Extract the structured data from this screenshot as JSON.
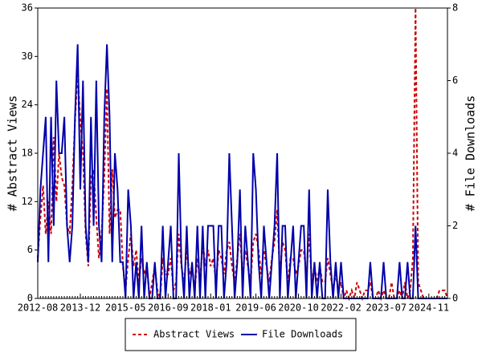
{
  "chart_data": {
    "type": "line",
    "categories": [
      "2012-08",
      null,
      null,
      null,
      null,
      null,
      null,
      null,
      null,
      null,
      null,
      null,
      null,
      null,
      null,
      null,
      "2013-12",
      null,
      null,
      null,
      null,
      null,
      null,
      null,
      null,
      null,
      null,
      null,
      null,
      null,
      null,
      null,
      null,
      "2015-05",
      null,
      null,
      null,
      null,
      null,
      null,
      null,
      null,
      null,
      null,
      null,
      null,
      null,
      null,
      null,
      "2016-09",
      null,
      null,
      null,
      null,
      null,
      null,
      null,
      null,
      null,
      null,
      null,
      null,
      null,
      null,
      null,
      "2018-01",
      null,
      null,
      null,
      null,
      null,
      null,
      null,
      null,
      null,
      null,
      null,
      null,
      null,
      null,
      null,
      null,
      "2019-06",
      null,
      null,
      null,
      null,
      null,
      null,
      null,
      null,
      null,
      null,
      null,
      null,
      null,
      null,
      null,
      "2020-10",
      null,
      null,
      null,
      null,
      null,
      null,
      null,
      null,
      null,
      null,
      null,
      null,
      null,
      null,
      null,
      "2022-02",
      null,
      null,
      null,
      null,
      null,
      null,
      null,
      null,
      null,
      null,
      null,
      null,
      null,
      null,
      null,
      null,
      "2023-07",
      null,
      null,
      null,
      null,
      null,
      null,
      null,
      null,
      null,
      null,
      null,
      null,
      null,
      null,
      null,
      "2024-11",
      null,
      null,
      null,
      null,
      null,
      null,
      null
    ],
    "series": [
      {
        "name": "Abstract Views",
        "color": "#cc0000",
        "axis": "y",
        "dash": true,
        "values": [
          5,
          10,
          14,
          8,
          12,
          8,
          20,
          12,
          18,
          15,
          14,
          9,
          8,
          14,
          22,
          28,
          22,
          18,
          8,
          4,
          15,
          16,
          10,
          5,
          8,
          15,
          26,
          8,
          16,
          10,
          11,
          11,
          4,
          1,
          5,
          8,
          4,
          6,
          2,
          5,
          3,
          4,
          0,
          2,
          4,
          1,
          0,
          5,
          3,
          3,
          5,
          1,
          2,
          8,
          4,
          2,
          6,
          3,
          4,
          1,
          5,
          2,
          7,
          4,
          6,
          4,
          5,
          2,
          6,
          5,
          3,
          6,
          7,
          4,
          2,
          5,
          8,
          3,
          6,
          4,
          2,
          7,
          8,
          6,
          3,
          6,
          4,
          2,
          5,
          7,
          11,
          3,
          7,
          6,
          2,
          5,
          5,
          3,
          4,
          6,
          6,
          3,
          8,
          2,
          4,
          2,
          4,
          2,
          2,
          5,
          3,
          1,
          3,
          1,
          2,
          0,
          1,
          0,
          1,
          0,
          2,
          1,
          0,
          1,
          1,
          2,
          0,
          0,
          1,
          0,
          1,
          0,
          0,
          2,
          0,
          0,
          1,
          0,
          2,
          0,
          1,
          5,
          36,
          2,
          1,
          0,
          0,
          0,
          0,
          0,
          0,
          1,
          1,
          1,
          0
        ]
      },
      {
        "name": "File Downloads",
        "color": "#0000aa",
        "axis": "y2",
        "dash": false,
        "values": [
          1,
          3,
          4,
          5,
          1,
          5,
          2,
          6,
          4,
          4,
          5,
          2,
          1,
          2,
          5,
          7,
          3,
          6,
          2,
          1,
          5,
          2,
          6,
          2,
          1,
          5,
          7,
          5,
          1,
          4,
          3,
          1,
          1,
          0,
          3,
          2,
          0,
          1,
          0,
          2,
          0,
          1,
          0,
          0,
          1,
          0,
          0,
          2,
          0,
          1,
          2,
          0,
          0,
          4,
          1,
          0,
          2,
          0,
          1,
          0,
          2,
          0,
          2,
          0,
          2,
          2,
          2,
          0,
          2,
          2,
          0,
          1,
          4,
          2,
          0,
          1,
          3,
          0,
          2,
          1,
          0,
          4,
          3,
          1,
          0,
          2,
          1,
          0,
          1,
          2,
          4,
          0,
          2,
          2,
          0,
          1,
          2,
          0,
          1,
          2,
          2,
          0,
          3,
          0,
          1,
          0,
          1,
          0,
          0,
          3,
          1,
          0,
          1,
          0,
          1,
          0,
          0,
          0,
          0,
          0,
          0,
          0,
          0,
          0,
          0,
          1,
          0,
          0,
          0,
          0,
          1,
          0,
          0,
          0,
          0,
          0,
          1,
          0,
          0,
          1,
          0,
          0,
          2,
          0,
          0,
          0,
          0,
          0,
          0,
          0,
          0,
          0,
          0,
          0,
          0
        ]
      }
    ],
    "ylabel": "# Abstract Views",
    "y2label": "# File Downloads",
    "ylim": [
      0,
      36
    ],
    "yticks": [
      0,
      6,
      12,
      18,
      24,
      30,
      36
    ],
    "y2lim": [
      0,
      8
    ],
    "y2ticks": [
      0,
      2,
      4,
      6,
      8
    ],
    "legend": "bottom"
  }
}
